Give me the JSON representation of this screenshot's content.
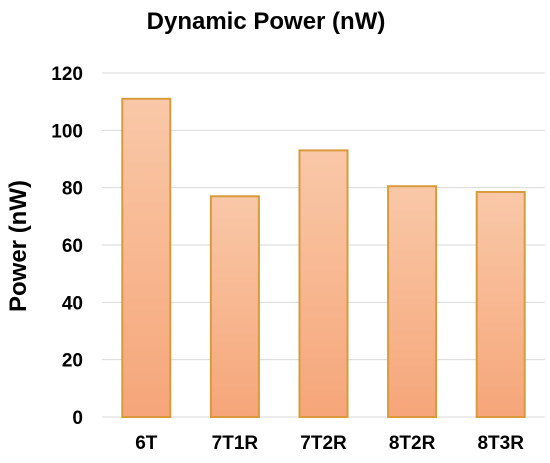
{
  "chart_data": {
    "type": "bar",
    "title": "Dynamic Power (nW)",
    "xlabel": "",
    "ylabel": "Power (nW)",
    "categories": [
      "6T",
      "7T1R",
      "7T2R",
      "8T2R",
      "8T3R"
    ],
    "values": [
      111,
      77,
      93,
      80.5,
      78.5
    ],
    "ylim": [
      0,
      120
    ],
    "yticks": [
      0,
      20,
      40,
      60,
      80,
      100,
      120
    ],
    "grid": true,
    "legend": "none",
    "colors": {
      "bar_fill_top": "#f9c4a2",
      "bar_fill_bottom": "#f6a87c",
      "bar_edge": "#d99a3c",
      "grid": "#d9d9d9"
    }
  }
}
